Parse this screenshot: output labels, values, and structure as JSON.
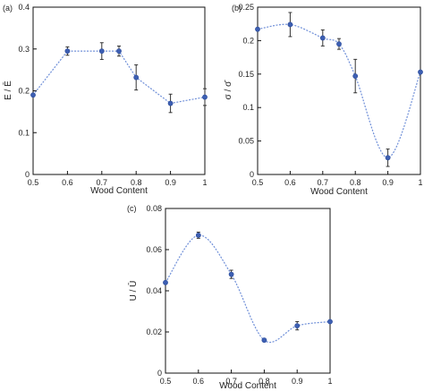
{
  "chart_data": [
    {
      "type": "line",
      "panel_label": "(a)",
      "xlabel": "Wood Content",
      "ylabel": "E / Ē",
      "xlim": [
        0.5,
        1
      ],
      "ylim": [
        0,
        0.4
      ],
      "xticks": [
        0.5,
        0.6,
        0.7,
        0.8,
        0.9,
        1
      ],
      "xtick_labels": [
        "0.5",
        "0.6",
        "0.7",
        "0.8",
        "0.9",
        "1"
      ],
      "yticks": [
        0,
        0.1,
        0.2,
        0.3,
        0.4
      ],
      "ytick_labels": [
        "0",
        "0.1",
        "0.2",
        "0.3",
        "0.4"
      ],
      "x": [
        0.5,
        0.6,
        0.7,
        0.75,
        0.8,
        0.9,
        1.0
      ],
      "y": [
        0.19,
        0.295,
        0.295,
        0.295,
        0.232,
        0.17,
        0.185
      ],
      "err": [
        0,
        0.01,
        0.02,
        0.012,
        0.03,
        0.022,
        0.02
      ],
      "curve": "linear",
      "grid": false,
      "box": true
    },
    {
      "type": "line",
      "panel_label": "(b)",
      "xlabel": "Wood Content",
      "ylabel": "σ / σ̄",
      "xlim": [
        0.5,
        1
      ],
      "ylim": [
        0,
        0.25
      ],
      "xticks": [
        0.5,
        0.6,
        0.7,
        0.8,
        0.9,
        1
      ],
      "xtick_labels": [
        "0.5",
        "0.6",
        "0.7",
        "0.8",
        "0.9",
        "1"
      ],
      "yticks": [
        0,
        0.05,
        0.1,
        0.15,
        0.2,
        0.25
      ],
      "ytick_labels": [
        "0",
        "0.05",
        "0.1",
        "0.15",
        "0.2",
        "0.25"
      ],
      "x": [
        0.5,
        0.6,
        0.7,
        0.75,
        0.8,
        0.9,
        1.0
      ],
      "y": [
        0.217,
        0.224,
        0.204,
        0.195,
        0.147,
        0.025,
        0.153
      ],
      "err": [
        0,
        0.018,
        0.012,
        0.008,
        0.025,
        0.013,
        0
      ],
      "curve": "smooth",
      "grid": false,
      "box": true
    },
    {
      "type": "line",
      "panel_label": "(c)",
      "xlabel": "Wood Content",
      "ylabel": "U / Ū",
      "xlim": [
        0.5,
        1
      ],
      "ylim": [
        0,
        0.08
      ],
      "xticks": [
        0.5,
        0.6,
        0.7,
        0.8,
        0.9,
        1
      ],
      "xtick_labels": [
        "0.5",
        "0.6",
        "0.7",
        "0.8",
        "0.9",
        "1"
      ],
      "yticks": [
        0,
        0.02,
        0.04,
        0.06,
        0.08
      ],
      "ytick_labels": [
        "0",
        "0.02",
        "0.04",
        "0.06",
        "0.08"
      ],
      "x": [
        0.5,
        0.6,
        0.7,
        0.8,
        0.9,
        1.0
      ],
      "y": [
        0.044,
        0.067,
        0.048,
        0.016,
        0.023,
        0.025
      ],
      "err": [
        0,
        0.0015,
        0.002,
        0,
        0.002,
        0
      ],
      "curve": "smooth",
      "grid": false,
      "box": true
    }
  ]
}
